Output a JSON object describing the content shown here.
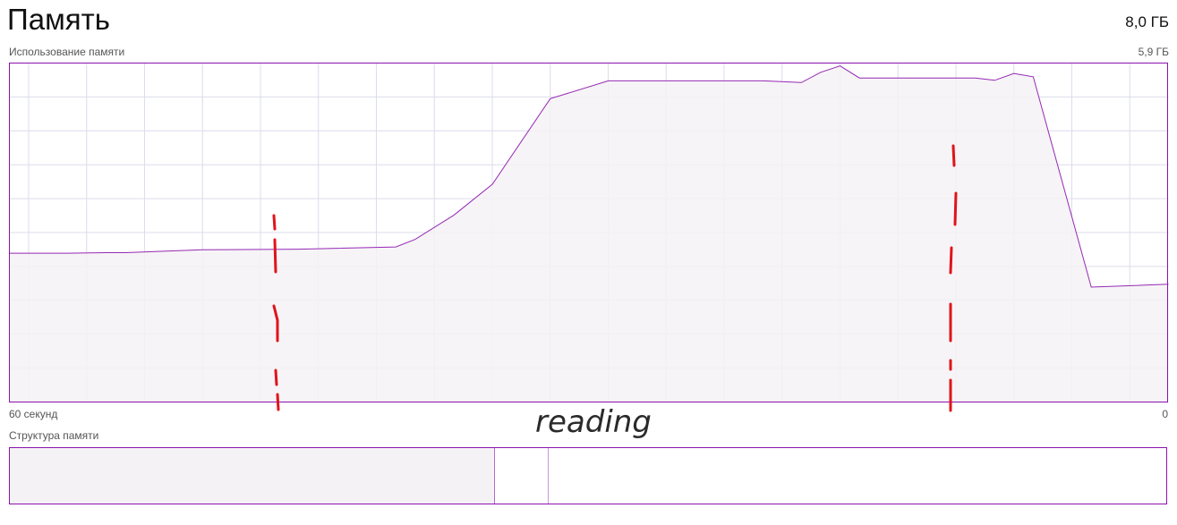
{
  "header": {
    "title": "Память",
    "total_memory": "8,0 ГБ"
  },
  "graph": {
    "label": "Использование памяти",
    "max_label": "5,9 ГБ",
    "time_left_label": "60 секунд",
    "time_right_label": "0"
  },
  "composition": {
    "label": "Структура памяти",
    "in_use_fraction": 0.419,
    "modified_fraction": 0.465
  },
  "annotation": {
    "text": "reading"
  },
  "colors": {
    "line": "#9528b4",
    "fill": "#f4f2f5",
    "grid": "#dcdcec",
    "border": "#8b12ae",
    "annotation_marks": "#e0131b"
  },
  "chart_data": {
    "type": "area",
    "x": [
      60,
      59,
      57,
      55,
      54,
      50,
      45,
      40,
      39,
      37,
      35,
      32,
      29,
      28,
      27,
      21,
      19,
      18,
      17,
      16,
      12,
      11,
      10,
      9,
      8,
      7,
      4,
      0
    ],
    "y": [
      2.59,
      2.59,
      2.59,
      2.6,
      2.6,
      2.65,
      2.66,
      2.7,
      2.83,
      3.25,
      3.79,
      5.28,
      5.59,
      5.59,
      5.59,
      5.59,
      5.56,
      5.74,
      5.85,
      5.64,
      5.64,
      5.64,
      5.64,
      5.6,
      5.72,
      5.66,
      2.0,
      2.05
    ],
    "xlabel": "",
    "ylabel": "",
    "xlim": [
      60,
      0
    ],
    "ylim": [
      0,
      5.9
    ],
    "grid": true,
    "legend": "none"
  }
}
